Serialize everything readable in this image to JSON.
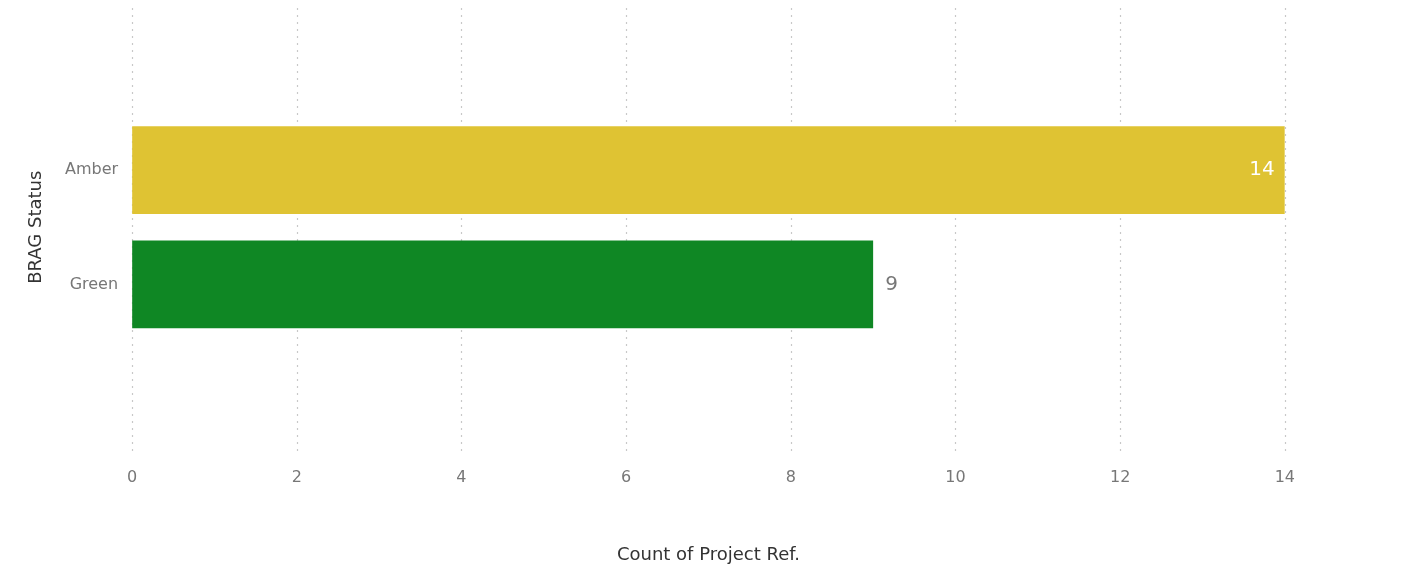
{
  "chart_data": {
    "type": "bar",
    "orientation": "horizontal",
    "xlabel": "Count of Project Ref.",
    "ylabel": "BRAG Status",
    "categories": [
      "Amber",
      "Green"
    ],
    "values": [
      14,
      9
    ],
    "colors": [
      "#dfc333",
      "#0f8724"
    ],
    "xlim": [
      0,
      14
    ],
    "xticks": [
      0,
      2,
      4,
      6,
      8,
      10,
      12,
      14
    ],
    "grid": "x",
    "data_labels": true,
    "legend": false
  }
}
